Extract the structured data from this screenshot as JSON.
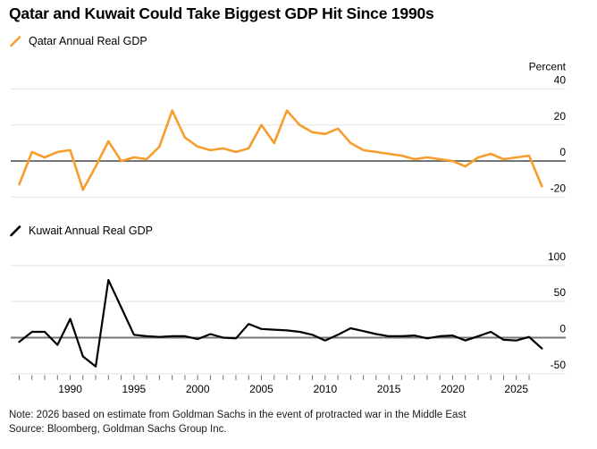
{
  "title": "Qatar and Kuwait Could Take Biggest GDP Hit Since 1990s",
  "note": "Note: 2026 based on estimate from Goldman Sachs in the event of protracted war in the Middle East",
  "source": "Source: Bloomberg, Goldman Sachs Group Inc.",
  "colors": {
    "qatar_orange": "#F79D2C",
    "kuwait_black": "#000000",
    "grid": "#E2E2E2",
    "zero_line": "#757575",
    "tick": "#6F6F6F",
    "text": "#000000"
  },
  "chart_data": [
    {
      "type": "line",
      "title": "Qatar Annual Real GDP",
      "unit_label": "Percent",
      "color": "#F79D2C",
      "legend_marker": "orange-slash",
      "ylim": [
        -28,
        58
      ],
      "yticks": [
        40,
        20,
        0,
        -20
      ],
      "grid": "horizontal-only",
      "legend_position": "top-left",
      "years": [
        1985,
        1986,
        1987,
        1988,
        1989,
        1990,
        1991,
        1992,
        1993,
        1994,
        1995,
        1996,
        1997,
        1998,
        1999,
        2000,
        2001,
        2002,
        2003,
        2004,
        2005,
        2006,
        2007,
        2008,
        2009,
        2010,
        2011,
        2012,
        2013,
        2014,
        2015,
        2016,
        2017,
        2018,
        2019,
        2020,
        2021,
        2022,
        2023,
        2024,
        2025,
        2026
      ],
      "values": [
        -13,
        5,
        2,
        5,
        6,
        -16,
        -3,
        11,
        0,
        2,
        1,
        8,
        28,
        13,
        8,
        6,
        7,
        5,
        7,
        20,
        10,
        28,
        20,
        16,
        15,
        18,
        10,
        6,
        5,
        4,
        3,
        1,
        2,
        1,
        0,
        -3,
        2,
        4,
        1,
        2,
        3,
        -14
      ]
    },
    {
      "type": "line",
      "title": "Kuwait Annual Real GDP",
      "unit_label": "",
      "color": "#000000",
      "legend_marker": "black-slash",
      "ylim": [
        -84,
        134
      ],
      "yticks": [
        100,
        50,
        0,
        -50
      ],
      "grid": "horizontal-only",
      "legend_position": "top-left",
      "x_axis": true,
      "xticks_minor_range": [
        1986,
        2026
      ],
      "xtick_labels": [
        1990,
        1995,
        2000,
        2005,
        2010,
        2015,
        2020,
        2025
      ],
      "years": [
        1985,
        1986,
        1987,
        1988,
        1989,
        1990,
        1991,
        1992,
        1993,
        1994,
        1995,
        1996,
        1997,
        1998,
        1999,
        2000,
        2001,
        2002,
        2003,
        2004,
        2005,
        2006,
        2007,
        2008,
        2009,
        2010,
        2011,
        2012,
        2013,
        2014,
        2015,
        2016,
        2017,
        2018,
        2019,
        2020,
        2021,
        2022,
        2023,
        2024,
        2025,
        2026
      ],
      "values": [
        -6,
        8,
        8,
        -10,
        26,
        -26,
        -40,
        80,
        42,
        4,
        2,
        1,
        2,
        2,
        -2,
        5,
        0,
        -1,
        19,
        12,
        11,
        10,
        8,
        4,
        -4,
        4,
        13,
        9,
        5,
        2,
        2,
        3,
        -1,
        2,
        3,
        -4,
        2,
        8,
        -3,
        -4,
        1,
        -15
      ]
    }
  ]
}
